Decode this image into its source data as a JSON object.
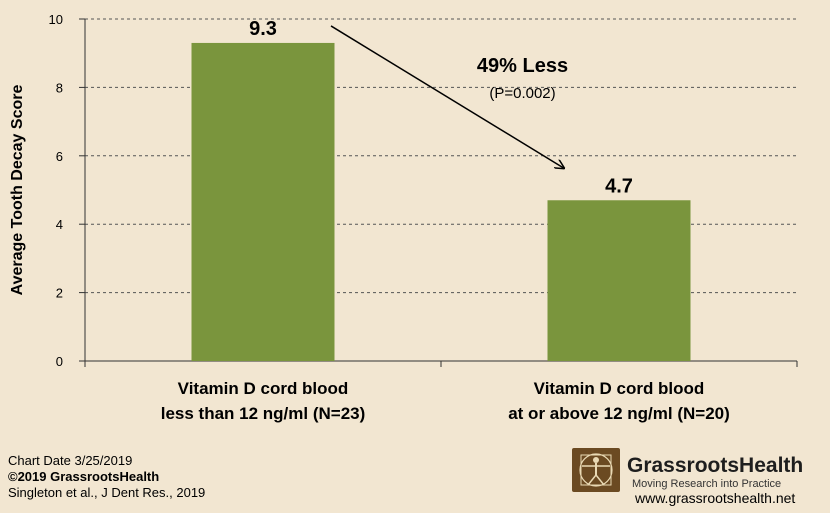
{
  "chart_data": {
    "type": "bar",
    "categories": [
      [
        "Vitamin D cord blood",
        "less than 12 ng/ml (N=23)"
      ],
      [
        "Vitamin D cord blood",
        "at or above 12 ng/ml (N=20)"
      ]
    ],
    "values": [
      9.3,
      4.7
    ],
    "value_labels": [
      "9.3",
      "4.7"
    ],
    "ylabel": "Average Tooth Decay Score",
    "xlabel": "",
    "ylim": [
      0,
      10
    ],
    "yticks": [
      0,
      2,
      4,
      6,
      8,
      10
    ],
    "grid": true,
    "bar_color": "#7a953d",
    "annotation": {
      "main": "49% Less",
      "sub": "(P=0.002)",
      "arrow_from_category": 0,
      "arrow_to_category": 1
    }
  },
  "footer": {
    "chart_date": "Chart Date 3/25/2019",
    "copyright": "©2019 GrassrootsHealth",
    "citation": "Singleton et al., J Dent Res., 2019"
  },
  "brand": {
    "logo_icon": "vitruvian-man-icon",
    "name": "GrassrootsHealth",
    "tagline": "Moving Research into Practice",
    "url": "www.grassrootshealth.net"
  },
  "colors": {
    "background": "#f2e6d1",
    "bar": "#7a953d",
    "logo_bg": "#6b4a22"
  }
}
